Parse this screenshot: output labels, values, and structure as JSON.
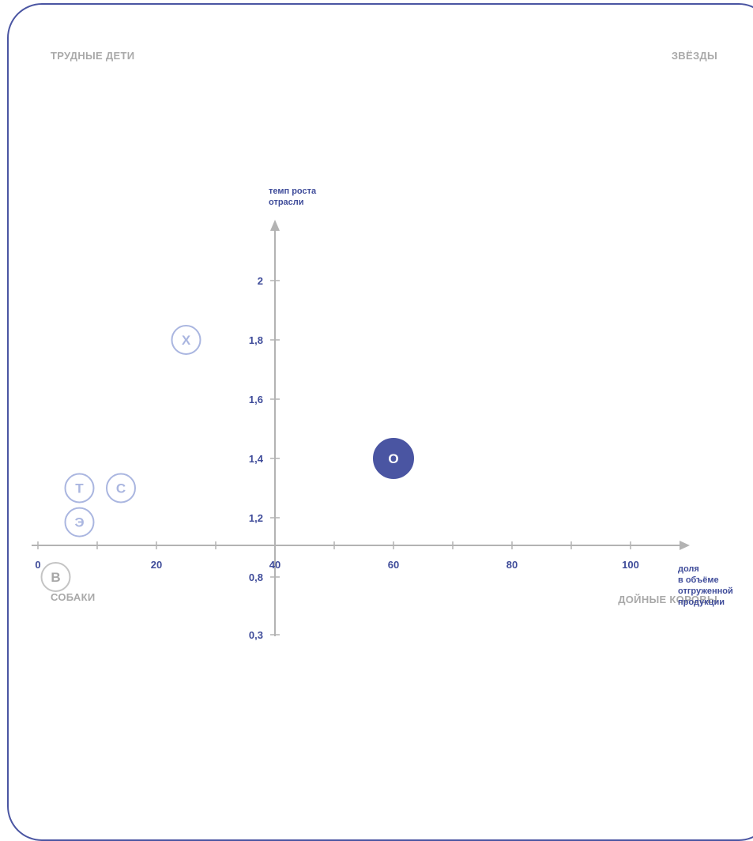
{
  "quadrants": {
    "top_left": "ТРУДНЫЕ ДЕТИ",
    "top_right": "ЗВЁЗДЫ",
    "bottom_left": "СОБАКИ",
    "bottom_right": "ДОЙНЫЕ КОРОВЫ"
  },
  "colors": {
    "accent": "#4a55a2",
    "axis": "#b3b3b3",
    "bubble_light": "#aab6e0",
    "bubble_gray": "#c4c4c4"
  },
  "chart_data": {
    "type": "scatter",
    "x_axis": {
      "label_lines": [
        "доля",
        "в объёме",
        "отгруженной",
        "продукции"
      ],
      "ticks": [
        0,
        10,
        20,
        30,
        40,
        50,
        60,
        70,
        80,
        90,
        100
      ],
      "tick_labels": [
        {
          "v": 0,
          "text": "0"
        },
        {
          "v": 20,
          "text": "20"
        },
        {
          "v": 40,
          "text": "40"
        },
        {
          "v": 60,
          "text": "60"
        },
        {
          "v": 80,
          "text": "80"
        },
        {
          "v": 100,
          "text": "100"
        }
      ],
      "range": [
        0,
        110
      ]
    },
    "y_axis": {
      "label_lines": [
        "темп роста",
        "отрасли"
      ],
      "ticks": [
        {
          "v": 2,
          "text": "2"
        },
        {
          "v": 1.8,
          "text": "1,8"
        },
        {
          "v": 1.6,
          "text": "1,6"
        },
        {
          "v": 1.4,
          "text": "1,4"
        },
        {
          "v": 1.2,
          "text": "1,2"
        },
        {
          "v": 0.8,
          "text": "0,8"
        },
        {
          "v": 0.3,
          "text": "0,3"
        }
      ]
    },
    "points": [
      {
        "label": "Х",
        "x": 25,
        "y": 1.8,
        "style": "outline-light"
      },
      {
        "label": "О",
        "x": 60,
        "y": 1.4,
        "style": "filled"
      },
      {
        "label": "Т",
        "x": 7,
        "y": 1.3,
        "style": "outline-light"
      },
      {
        "label": "С",
        "x": 14,
        "y": 1.3,
        "style": "outline-light"
      },
      {
        "label": "Э",
        "x": 7,
        "y": 1.17,
        "style": "outline-light"
      },
      {
        "label": "В",
        "x": 3,
        "y": 0.8,
        "style": "outline-gray"
      }
    ]
  }
}
